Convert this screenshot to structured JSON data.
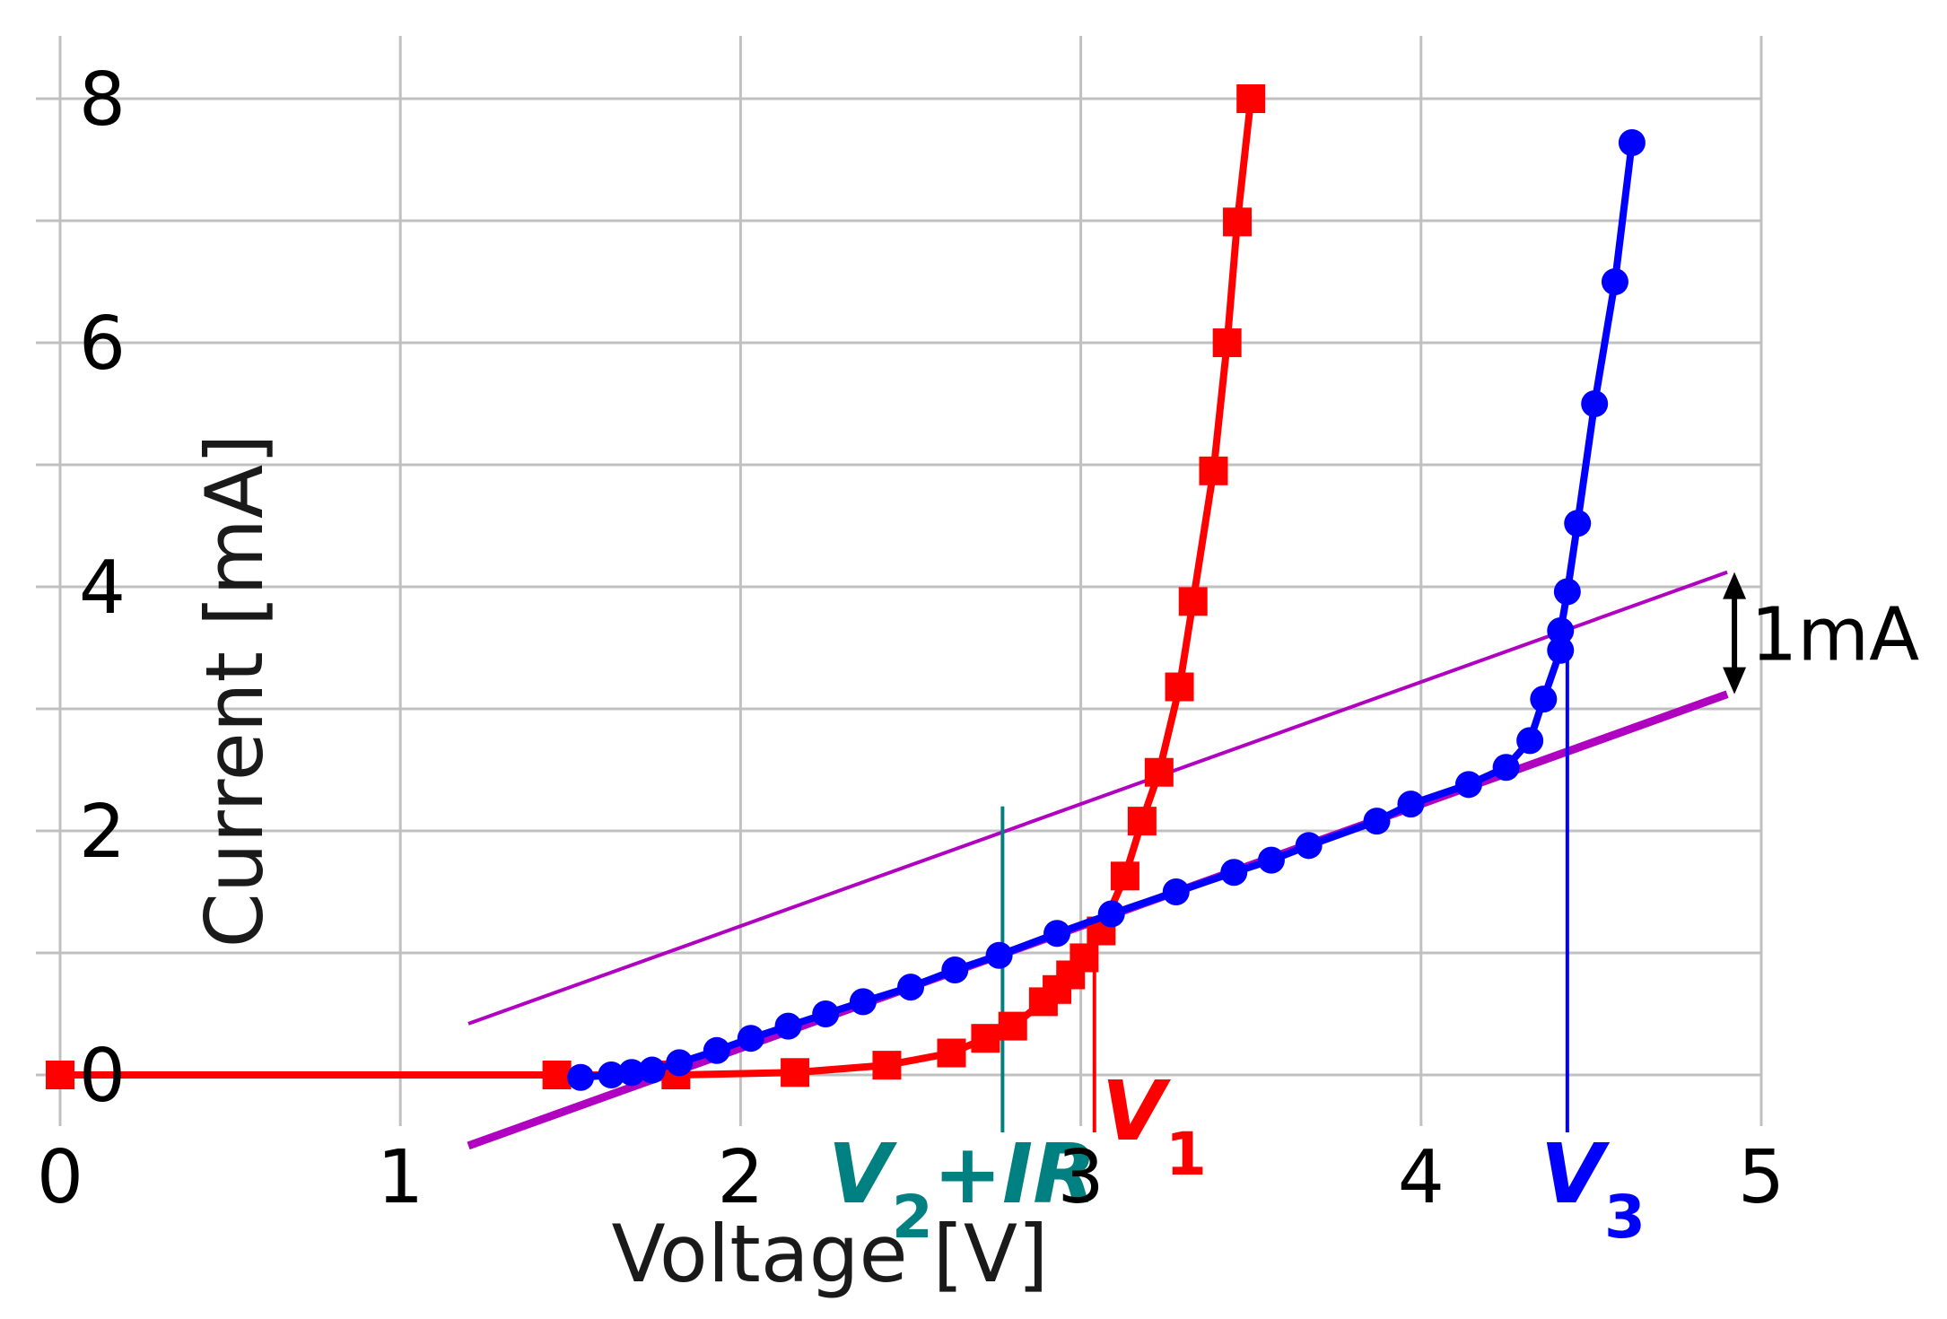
{
  "chart_data": {
    "type": "line",
    "xlabel": "Voltage [V]",
    "ylabel": "Current [mA]",
    "xlim": [
      0,
      5
    ],
    "ylim": [
      0,
      8
    ],
    "x_ticks": [
      "0",
      "1",
      "2",
      "3",
      "4",
      "5"
    ],
    "y_ticks": [
      "0",
      "2",
      "4",
      "6",
      "8"
    ],
    "grid": true,
    "colors": {
      "red_series": "#ff0000",
      "blue_series": "#0000ff",
      "fit_line": "#b000c0",
      "v2_marker": "#008080",
      "grid": "#c0c0c0"
    },
    "series": [
      {
        "color": "#ff0000",
        "marker": "square",
        "points": [
          [
            0.0,
            0.0
          ],
          [
            1.46,
            0.0
          ],
          [
            1.81,
            0.0
          ],
          [
            2.16,
            0.02
          ],
          [
            2.43,
            0.08
          ],
          [
            2.62,
            0.18
          ],
          [
            2.72,
            0.3
          ],
          [
            2.8,
            0.4
          ],
          [
            2.89,
            0.6
          ],
          [
            2.93,
            0.7
          ],
          [
            2.97,
            0.82
          ],
          [
            3.01,
            0.96
          ],
          [
            3.06,
            1.18
          ],
          [
            3.13,
            1.63
          ],
          [
            3.18,
            2.08
          ],
          [
            3.23,
            2.48
          ],
          [
            3.29,
            3.18
          ],
          [
            3.33,
            3.88
          ],
          [
            3.39,
            4.95
          ],
          [
            3.43,
            6.0
          ],
          [
            3.46,
            6.99
          ],
          [
            3.5,
            8.0
          ]
        ]
      },
      {
        "color": "#0000ff",
        "marker": "circle",
        "points": [
          [
            1.53,
            -0.02
          ],
          [
            1.62,
            0.0
          ],
          [
            1.68,
            0.02
          ],
          [
            1.74,
            0.04
          ],
          [
            1.82,
            0.1
          ],
          [
            1.93,
            0.2
          ],
          [
            2.03,
            0.3
          ],
          [
            2.14,
            0.4
          ],
          [
            2.25,
            0.5
          ],
          [
            2.36,
            0.6
          ],
          [
            2.5,
            0.72
          ],
          [
            2.63,
            0.86
          ],
          [
            2.76,
            0.98
          ],
          [
            2.93,
            1.16
          ],
          [
            3.09,
            1.32
          ],
          [
            3.28,
            1.5
          ],
          [
            3.45,
            1.66
          ],
          [
            3.56,
            1.76
          ],
          [
            3.67,
            1.88
          ],
          [
            3.87,
            2.08
          ],
          [
            3.97,
            2.22
          ],
          [
            4.14,
            2.38
          ],
          [
            4.25,
            2.52
          ],
          [
            4.32,
            2.74
          ],
          [
            4.36,
            3.08
          ],
          [
            4.41,
            3.48
          ],
          [
            4.41,
            3.64
          ],
          [
            4.43,
            3.96
          ],
          [
            4.46,
            4.52
          ],
          [
            4.51,
            5.5
          ],
          [
            4.57,
            6.5
          ],
          [
            4.62,
            7.64
          ]
        ]
      }
    ],
    "fit_lines": [
      {
        "color": "#b000c0",
        "from": [
          1.2,
          -0.58
        ],
        "to": [
          4.9,
          3.12
        ],
        "weight": "thick"
      },
      {
        "color": "#b000c0",
        "from": [
          1.2,
          0.42
        ],
        "to": [
          4.9,
          4.12
        ],
        "weight": "thin"
      }
    ],
    "markers": [
      {
        "label_main": "V",
        "label_sub": "1",
        "label_tail": "",
        "x": 3.04,
        "y_top": 0.98,
        "color": "#ff0000"
      },
      {
        "label_main": "V",
        "label_sub": "2",
        "label_tail": "+IR",
        "x": 2.77,
        "y_top": 2.2,
        "color": "#008080"
      },
      {
        "label_main": "V",
        "label_sub": "3",
        "label_tail": "",
        "x": 4.43,
        "y_top": 3.5,
        "color": "#0000ff"
      }
    ],
    "annotation": {
      "text": "1mA",
      "x": 4.9,
      "y_from": 3.12,
      "y_to": 4.12,
      "color": "#000000"
    }
  }
}
